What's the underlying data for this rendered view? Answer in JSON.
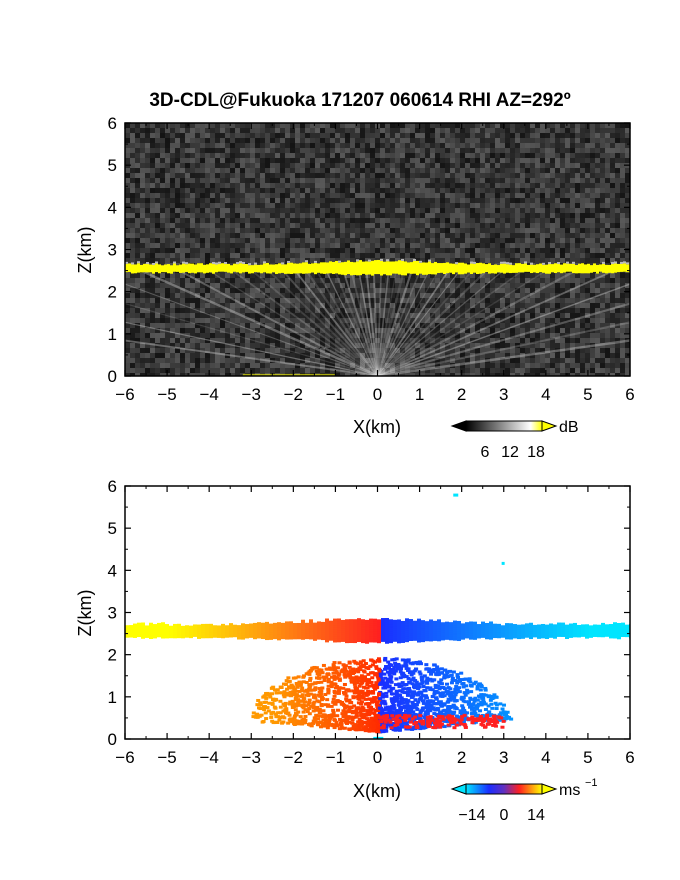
{
  "title": "3D-CDL@Fukuoka 171207 060614 RHI AZ=292º",
  "chart_data": [
    {
      "type": "heatmap",
      "xlabel": "X(km)",
      "ylabel": "Z(km)",
      "xlim": [
        -6,
        6
      ],
      "ylim": [
        0,
        6
      ],
      "xticks": [
        "−6",
        "−5",
        "−4",
        "−3",
        "−2",
        "−1",
        "0",
        "1",
        "2",
        "3",
        "4",
        "5",
        "6"
      ],
      "yticks": [
        "0",
        "1",
        "2",
        "3",
        "4",
        "5",
        "6"
      ],
      "background": "gray noise",
      "layer": {
        "base_km": 2.45,
        "top_km": 2.65,
        "color": "#ffff00"
      },
      "colorbar": {
        "unit": "dB",
        "ticks": [
          "6",
          "12",
          "18"
        ],
        "range": [
          0,
          21
        ]
      }
    },
    {
      "type": "heatmap",
      "xlabel": "X(km)",
      "ylabel": "Z(km)",
      "xlim": [
        -6,
        6
      ],
      "ylim": [
        0,
        6
      ],
      "xticks": [
        "−6",
        "−5",
        "−4",
        "−3",
        "−2",
        "−1",
        "0",
        "1",
        "2",
        "3",
        "4",
        "5",
        "6"
      ],
      "yticks": [
        "0",
        "1",
        "2",
        "3",
        "4",
        "5",
        "6"
      ],
      "layer": {
        "base_km": 2.4,
        "top_km": 2.75
      },
      "velocity_colors": {
        "far_left": "#ffff00",
        "near_left": "#ff2020",
        "near_right": "#1a2dff",
        "far_right": "#00e5ff"
      },
      "colorbar": {
        "unit": "ms",
        "unit_exponent": "−1",
        "ticks": [
          "−14",
          "0",
          "14"
        ],
        "range": [
          -21,
          21
        ]
      }
    }
  ]
}
